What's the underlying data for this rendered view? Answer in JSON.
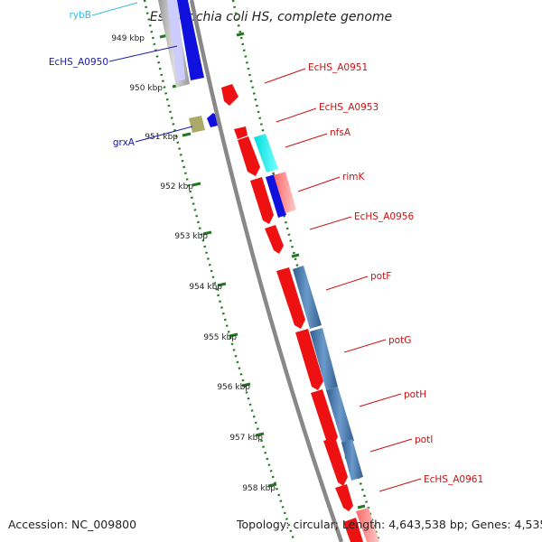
{
  "title": "Escherichia coli HS, complete genome",
  "ticks": [
    "949 kbp",
    "950 kbp",
    "951 kbp",
    "952 kbp",
    "953 kbp",
    "954 kbp",
    "955 kbp",
    "956 kbp",
    "957 kbp",
    "958 kbp"
  ],
  "gene_labels": [
    {
      "name": "rybB",
      "color": "#33bbdd"
    },
    {
      "name": "EcHS_A0950",
      "color": "#1a1aaa"
    },
    {
      "name": "grxA",
      "color": "#1a1aaa"
    },
    {
      "name": "EcHS_A0951",
      "color": "#cc1111"
    },
    {
      "name": "EcHS_A0953",
      "color": "#cc1111"
    },
    {
      "name": "nfsA",
      "color": "#cc1111"
    },
    {
      "name": "rimK",
      "color": "#cc1111"
    },
    {
      "name": "EcHS_A0956",
      "color": "#cc1111"
    },
    {
      "name": "potF",
      "color": "#cc1111"
    },
    {
      "name": "potG",
      "color": "#cc1111"
    },
    {
      "name": "potH",
      "color": "#cc1111"
    },
    {
      "name": "potI",
      "color": "#cc1111"
    },
    {
      "name": "EcHS_A0961",
      "color": "#cc1111"
    }
  ],
  "colors": {
    "forward_cds": "#ee1111",
    "reverse_cds": "#1111dd",
    "trna": "#22ccdd",
    "other": "#aaaa66",
    "feature_blue": "#4477aa",
    "feature_pink": "#ee8888",
    "feature_gray": "#bbbbbb",
    "backbone": "#888888",
    "gc_dots": "#227722"
  },
  "footer": {
    "accession": "Accession: NC_009800",
    "summary": "Topology: circular; Length: 4,643,538 bp; Genes: 4,535"
  }
}
